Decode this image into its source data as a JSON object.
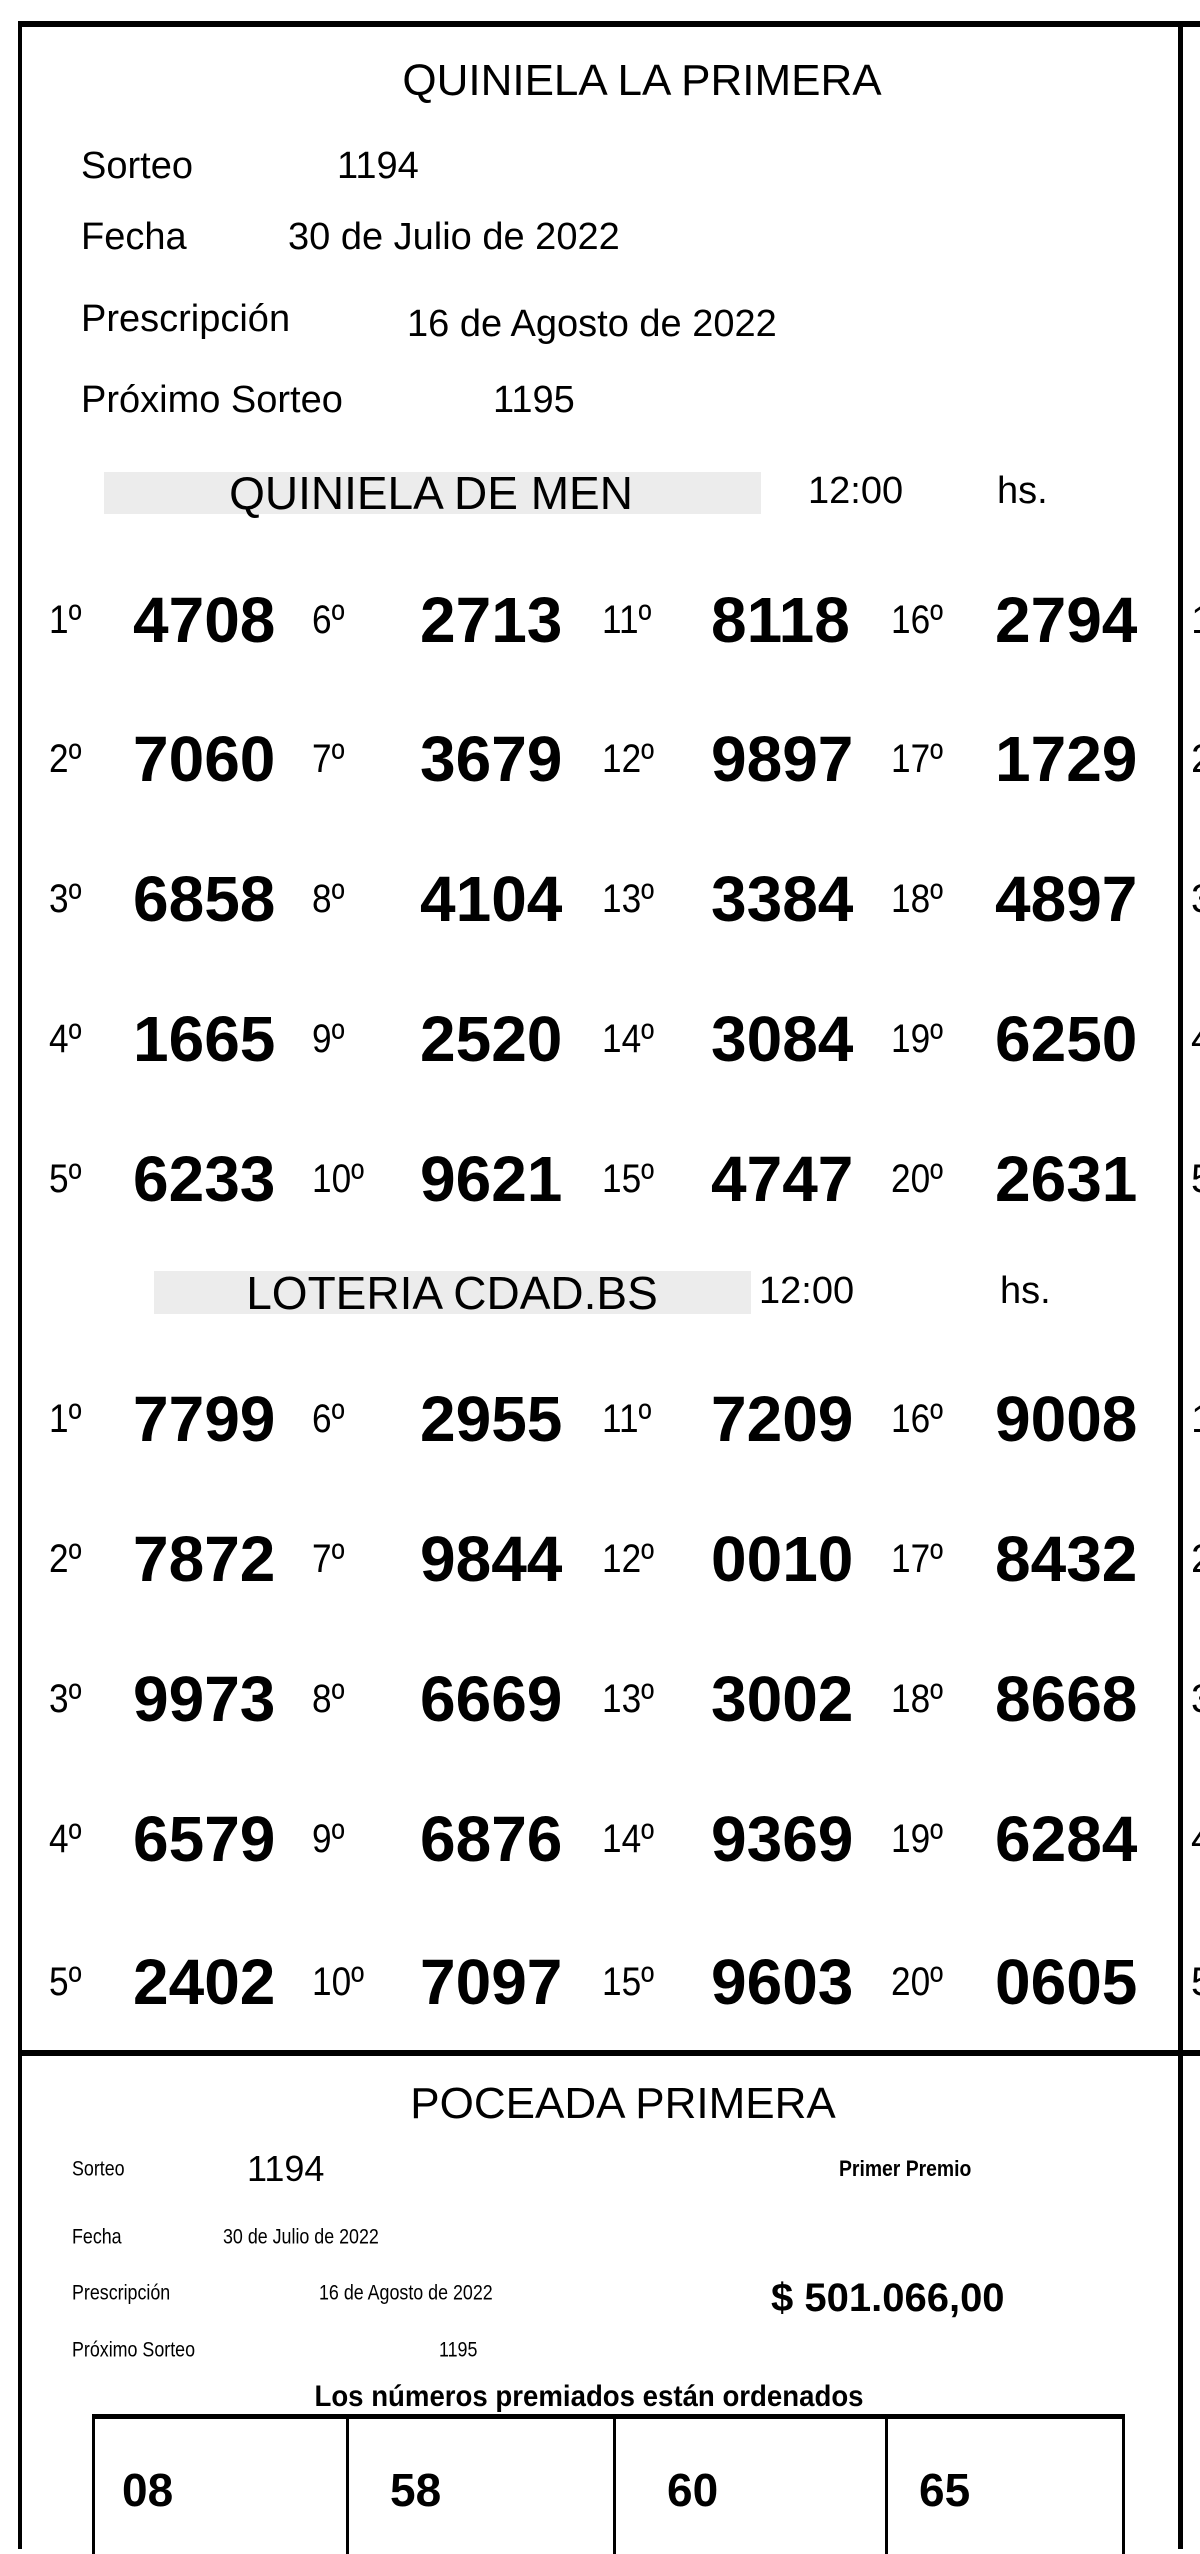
{
  "quiniela": {
    "title": "QUINIELA LA PRIMERA",
    "sorteo_label": "Sorteo",
    "sorteo": "1194",
    "fecha_label": "Fecha",
    "fecha": "30 de Julio de 2022",
    "prescripcion_label": "Prescripción",
    "prescripcion": "16 de Agosto de 2022",
    "proximo_label": "Próximo Sorteo",
    "proximo": "1195",
    "sections": [
      {
        "name": "QUINIELA DE MEN",
        "time": "12:00",
        "time_unit": "hs.",
        "results": [
          {
            "pos": "1º",
            "num": "4708"
          },
          {
            "pos": "2º",
            "num": "7060"
          },
          {
            "pos": "3º",
            "num": "6858"
          },
          {
            "pos": "4º",
            "num": "1665"
          },
          {
            "pos": "5º",
            "num": "6233"
          },
          {
            "pos": "6º",
            "num": "2713"
          },
          {
            "pos": "7º",
            "num": "3679"
          },
          {
            "pos": "8º",
            "num": "4104"
          },
          {
            "pos": "9º",
            "num": "2520"
          },
          {
            "pos": "10º",
            "num": "9621"
          },
          {
            "pos": "11º",
            "num": "8118"
          },
          {
            "pos": "12º",
            "num": "9897"
          },
          {
            "pos": "13º",
            "num": "3384"
          },
          {
            "pos": "14º",
            "num": "3084"
          },
          {
            "pos": "15º",
            "num": "4747"
          },
          {
            "pos": "16º",
            "num": "2794"
          },
          {
            "pos": "17º",
            "num": "1729"
          },
          {
            "pos": "18º",
            "num": "4897"
          },
          {
            "pos": "19º",
            "num": "6250"
          },
          {
            "pos": "20º",
            "num": "2631"
          }
        ]
      },
      {
        "name": "LOTERIA CDAD.BS",
        "time": "12:00",
        "time_unit": "hs.",
        "results": [
          {
            "pos": "1º",
            "num": "7799"
          },
          {
            "pos": "2º",
            "num": "7872"
          },
          {
            "pos": "3º",
            "num": "9973"
          },
          {
            "pos": "4º",
            "num": "6579"
          },
          {
            "pos": "5º",
            "num": "2402"
          },
          {
            "pos": "6º",
            "num": "2955"
          },
          {
            "pos": "7º",
            "num": "9844"
          },
          {
            "pos": "8º",
            "num": "6669"
          },
          {
            "pos": "9º",
            "num": "6876"
          },
          {
            "pos": "10º",
            "num": "7097"
          },
          {
            "pos": "11º",
            "num": "7209"
          },
          {
            "pos": "12º",
            "num": "0010"
          },
          {
            "pos": "13º",
            "num": "3002"
          },
          {
            "pos": "14º",
            "num": "9369"
          },
          {
            "pos": "15º",
            "num": "9603"
          },
          {
            "pos": "16º",
            "num": "9008"
          },
          {
            "pos": "17º",
            "num": "8432"
          },
          {
            "pos": "18º",
            "num": "8668"
          },
          {
            "pos": "19º",
            "num": "6284"
          },
          {
            "pos": "20º",
            "num": "0605"
          }
        ]
      }
    ]
  },
  "poceada": {
    "title": "POCEADA PRIMERA",
    "sorteo_label": "Sorteo",
    "sorteo": "1194",
    "fecha_label": "Fecha",
    "fecha": "30 de Julio de 2022",
    "prescripcion_label": "Prescripción",
    "prescripcion": "16 de Agosto de 2022",
    "proximo_label": "Próximo Sorteo",
    "proximo": "1195",
    "premio_label": "Primer Premio",
    "premio": "$ 501.066,00",
    "ordered_note": "Los números premiados están ordenados",
    "numbers": [
      "08",
      "58",
      "60",
      "65"
    ]
  },
  "clipped_next_column": [
    "1",
    "2",
    "3",
    "4",
    "5",
    "1",
    "2",
    "3",
    "4",
    "5"
  ]
}
